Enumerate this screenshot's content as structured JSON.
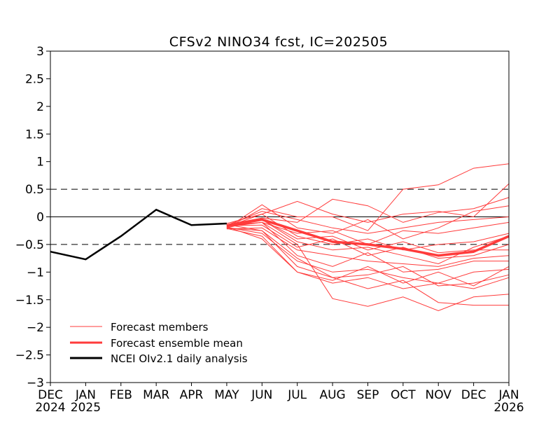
{
  "chart_data": {
    "type": "line",
    "title": "CFSv2 NINO34 fcst, IC=202505",
    "xlabel": "",
    "ylabel": "",
    "ylim": [
      -3,
      3
    ],
    "yticks": [
      3,
      2.5,
      2,
      1.5,
      1,
      0.5,
      0,
      -0.5,
      -1,
      -1.5,
      -2,
      -2.5,
      -3
    ],
    "ytick_labels": [
      "3",
      "2.5",
      "2",
      "1.5",
      "1",
      "0.5",
      "0",
      "−0.5",
      "−1",
      "−1.5",
      "−2",
      "−2.5",
      "−3"
    ],
    "xticks": [
      {
        "month": "DEC",
        "year": "2024"
      },
      {
        "month": "JAN",
        "year": "2025"
      },
      {
        "month": "FEB",
        "year": ""
      },
      {
        "month": "MAR",
        "year": ""
      },
      {
        "month": "APR",
        "year": ""
      },
      {
        "month": "MAY",
        "year": ""
      },
      {
        "month": "JUN",
        "year": ""
      },
      {
        "month": "JUL",
        "year": ""
      },
      {
        "month": "AUG",
        "year": ""
      },
      {
        "month": "SEP",
        "year": ""
      },
      {
        "month": "OCT",
        "year": ""
      },
      {
        "month": "NOV",
        "year": ""
      },
      {
        "month": "DEC",
        "year": ""
      },
      {
        "month": "JAN",
        "year": "2026"
      }
    ],
    "xlim": [
      0,
      13
    ],
    "reference_lines": [
      {
        "y": 0.5,
        "style": "dashed"
      },
      {
        "y": 0,
        "style": "solid"
      },
      {
        "y": -0.5,
        "style": "dashed"
      }
    ],
    "grid": false,
    "legend": {
      "placement": "bottom-left",
      "entries": [
        {
          "label": "Forecast members",
          "color": "#ff3b3b",
          "weight": "thin"
        },
        {
          "label": "Forecast ensemble mean",
          "color": "#ff3b3b",
          "weight": "thick"
        },
        {
          "label": "NCEI OIv2.1 daily analysis",
          "color": "#000000",
          "weight": "thick"
        }
      ]
    },
    "colors": {
      "members": "#ff3b3b",
      "mean": "#ff3b3b",
      "analysis": "#000000"
    },
    "analysis": {
      "x": [
        0,
        1,
        2,
        3,
        4,
        5
      ],
      "y": [
        -0.63,
        -0.77,
        -0.35,
        0.13,
        -0.15,
        -0.12
      ]
    },
    "ensemble_mean": {
      "x": [
        5,
        6,
        7,
        8,
        9,
        10,
        11,
        12,
        13
      ],
      "y": [
        -0.16,
        -0.05,
        -0.25,
        -0.45,
        -0.5,
        -0.58,
        -0.7,
        -0.63,
        -0.35
      ]
    },
    "members": {
      "x": [
        5,
        6,
        7,
        8,
        9,
        10,
        11,
        12,
        13
      ],
      "series": [
        [
          -0.2,
          0.15,
          0.0,
          0.0,
          -0.25,
          0.5,
          0.58,
          0.88,
          0.96
        ],
        [
          -0.18,
          0.05,
          0.28,
          0.05,
          -0.1,
          0.05,
          0.1,
          0.0,
          0.6
        ],
        [
          -0.14,
          -0.02,
          -0.1,
          0.32,
          0.2,
          -0.1,
          0.08,
          0.15,
          0.35
        ],
        [
          -0.2,
          0.22,
          -0.2,
          -0.3,
          -0.05,
          -0.4,
          -0.2,
          0.1,
          0.2
        ],
        [
          -0.15,
          0.1,
          -0.05,
          -0.2,
          -0.3,
          -0.2,
          -0.1,
          -0.05,
          0.0
        ],
        [
          -0.18,
          -0.1,
          -0.3,
          -0.25,
          -0.5,
          -0.25,
          -0.3,
          -0.2,
          -0.1
        ],
        [
          -0.12,
          0.05,
          -0.35,
          -0.5,
          -0.4,
          -0.6,
          -0.5,
          -0.45,
          -0.3
        ],
        [
          -0.2,
          -0.05,
          -0.45,
          -0.6,
          -0.55,
          -0.7,
          -0.85,
          -0.55,
          -0.35
        ],
        [
          -0.16,
          -0.15,
          -0.55,
          -0.4,
          -0.7,
          -0.55,
          -0.75,
          -0.7,
          -0.5
        ],
        [
          -0.22,
          -0.2,
          -0.6,
          -0.7,
          -0.8,
          -0.85,
          -0.9,
          -0.75,
          -0.7
        ],
        [
          -0.17,
          -0.1,
          -0.7,
          -0.9,
          -0.65,
          -1.0,
          -0.95,
          -0.8,
          -0.8
        ],
        [
          -0.19,
          -0.3,
          -0.8,
          -1.0,
          -0.95,
          -1.1,
          -1.2,
          -1.0,
          -0.95
        ],
        [
          -0.14,
          -0.25,
          -0.9,
          -1.1,
          -1.05,
          -0.9,
          -1.25,
          -1.2,
          -1.05
        ],
        [
          -0.21,
          -0.35,
          -1.0,
          -1.2,
          -1.1,
          -1.3,
          -1.2,
          -1.3,
          -1.1
        ],
        [
          -0.15,
          -0.1,
          -0.5,
          -1.48,
          -1.62,
          -1.45,
          -1.7,
          -1.45,
          -1.4
        ],
        [
          -0.2,
          -0.25,
          -0.75,
          -1.1,
          -1.3,
          -1.15,
          -1.55,
          -1.6,
          -1.6
        ],
        [
          -0.18,
          -0.4,
          -1.0,
          -1.15,
          -0.9,
          -1.2,
          -1.0,
          -1.25,
          -0.9
        ],
        [
          -0.16,
          -0.05,
          -0.4,
          -0.35,
          -0.6,
          -0.45,
          -0.65,
          -0.6,
          -0.6
        ]
      ]
    }
  }
}
